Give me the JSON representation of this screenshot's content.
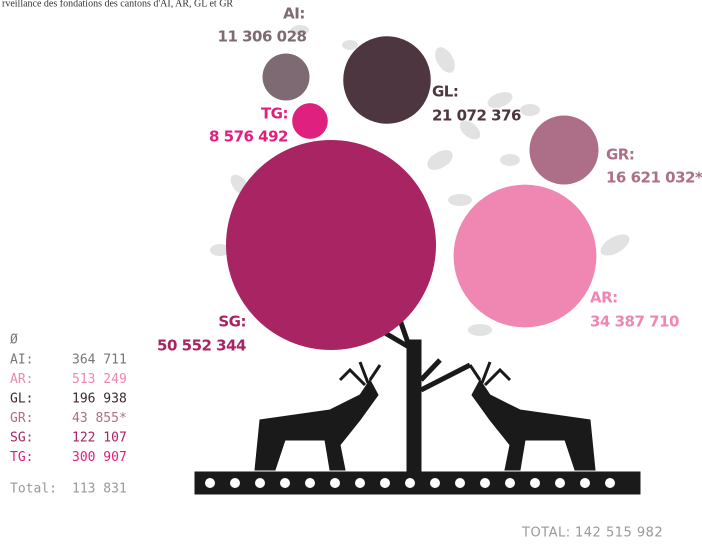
{
  "chart_data": {
    "type": "bubble",
    "title": "rveillance des fondations des cantons d'AI, AR, GL et GR",
    "categories": [
      "AI:",
      "GL:",
      "TG:",
      "GR:",
      "SG:",
      "AR:"
    ],
    "values": [
      11306028,
      21072376,
      8576492,
      16621032,
      50552344,
      34387710
    ],
    "value_labels": [
      "11 306 028",
      "21 072 376",
      "8 576 492",
      "16 621 032*",
      "50 552 344",
      "34 387 710"
    ],
    "colors": [
      "#7d6a72",
      "#4d3640",
      "#e0207e",
      "#ad6f88",
      "#a82462",
      "#ef87b2"
    ]
  },
  "averages": {
    "header": "Ø",
    "rows": [
      {
        "label": "AI:",
        "value": "364 711",
        "color": "#777777"
      },
      {
        "label": "AR:",
        "value": "513 249",
        "color": "#ef87b2"
      },
      {
        "label": "GL:",
        "value": "196 938",
        "color": "#3a2a30"
      },
      {
        "label": "GR:",
        "value": "43 855*",
        "color": "#ad6f88"
      },
      {
        "label": "SG:",
        "value": "122 107",
        "color": "#a82462"
      },
      {
        "label": "TG:",
        "value": "300 907",
        "color": "#e0207e"
      }
    ],
    "total_label": "Total:",
    "total_value": "113 831"
  },
  "grand_total": {
    "label": "TOTAL:",
    "value": "142 515 982"
  }
}
